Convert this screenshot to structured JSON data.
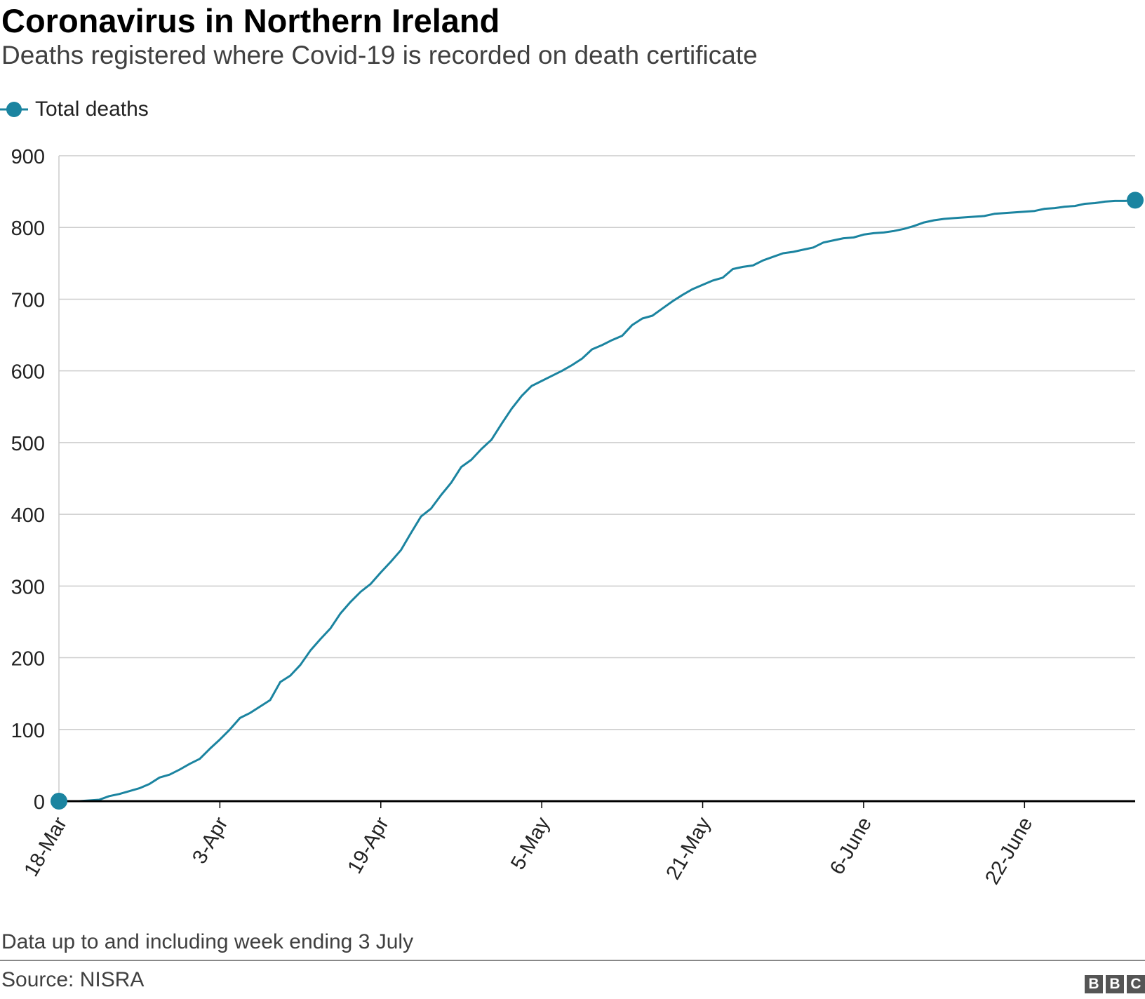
{
  "header": {
    "title": "Coronavirus in Northern Ireland",
    "subtitle": "Deaths registered where Covid-19 is recorded on death certificate"
  },
  "footer": {
    "note": "Data up to and including week ending 3 July",
    "source": "Source: NISRA",
    "logo": [
      "B",
      "B",
      "C"
    ]
  },
  "colors": {
    "series": "#1b84a0",
    "grid": "#cccccc",
    "baseline": "#000000"
  },
  "chart_data": {
    "type": "line",
    "title": "Coronavirus in Northern Ireland",
    "subtitle": "Deaths registered where Covid-19 is recorded on death certificate",
    "xlabel": "",
    "ylabel": "",
    "ylim": [
      0,
      900
    ],
    "yticks": [
      0,
      100,
      200,
      300,
      400,
      500,
      600,
      700,
      800,
      900
    ],
    "x_range": [
      "2020-03-18",
      "2020-07-03"
    ],
    "xticks": [
      {
        "date": "2020-03-18",
        "label": "18-Mar"
      },
      {
        "date": "2020-04-03",
        "label": "3-Apr"
      },
      {
        "date": "2020-04-19",
        "label": "19-Apr"
      },
      {
        "date": "2020-05-05",
        "label": "5-May"
      },
      {
        "date": "2020-05-21",
        "label": "21-May"
      },
      {
        "date": "2020-06-06",
        "label": "6-June"
      },
      {
        "date": "2020-06-22",
        "label": "22-June"
      }
    ],
    "grid": true,
    "legend": "top-left",
    "series": [
      {
        "name": "Total deaths",
        "markers": "first-and-last",
        "points": [
          [
            "2020-03-18",
            0
          ],
          [
            "2020-03-19",
            0
          ],
          [
            "2020-03-20",
            0
          ],
          [
            "2020-03-21",
            1
          ],
          [
            "2020-03-22",
            2
          ],
          [
            "2020-03-23",
            7
          ],
          [
            "2020-03-24",
            10
          ],
          [
            "2020-03-25",
            14
          ],
          [
            "2020-03-26",
            18
          ],
          [
            "2020-03-27",
            24
          ],
          [
            "2020-03-28",
            33
          ],
          [
            "2020-03-29",
            37
          ],
          [
            "2020-03-30",
            44
          ],
          [
            "2020-03-31",
            52
          ],
          [
            "2020-04-01",
            59
          ],
          [
            "2020-04-02",
            73
          ],
          [
            "2020-04-03",
            86
          ],
          [
            "2020-04-04",
            100
          ],
          [
            "2020-04-05",
            116
          ],
          [
            "2020-04-06",
            123
          ],
          [
            "2020-04-07",
            132
          ],
          [
            "2020-04-08",
            141
          ],
          [
            "2020-04-09",
            166
          ],
          [
            "2020-04-10",
            175
          ],
          [
            "2020-04-11",
            190
          ],
          [
            "2020-04-12",
            210
          ],
          [
            "2020-04-13",
            226
          ],
          [
            "2020-04-14",
            241
          ],
          [
            "2020-04-15",
            262
          ],
          [
            "2020-04-16",
            278
          ],
          [
            "2020-04-17",
            292
          ],
          [
            "2020-04-18",
            303
          ],
          [
            "2020-04-19",
            319
          ],
          [
            "2020-04-20",
            334
          ],
          [
            "2020-04-21",
            350
          ],
          [
            "2020-04-22",
            374
          ],
          [
            "2020-04-23",
            397
          ],
          [
            "2020-04-24",
            408
          ],
          [
            "2020-04-25",
            427
          ],
          [
            "2020-04-26",
            444
          ],
          [
            "2020-04-27",
            466
          ],
          [
            "2020-04-28",
            476
          ],
          [
            "2020-04-29",
            491
          ],
          [
            "2020-04-30",
            504
          ],
          [
            "2020-05-01",
            526
          ],
          [
            "2020-05-02",
            547
          ],
          [
            "2020-05-03",
            565
          ],
          [
            "2020-05-04",
            579
          ],
          [
            "2020-05-05",
            586
          ],
          [
            "2020-05-06",
            593
          ],
          [
            "2020-05-07",
            600
          ],
          [
            "2020-05-08",
            608
          ],
          [
            "2020-05-09",
            617
          ],
          [
            "2020-05-10",
            630
          ],
          [
            "2020-05-11",
            636
          ],
          [
            "2020-05-12",
            643
          ],
          [
            "2020-05-13",
            649
          ],
          [
            "2020-05-14",
            664
          ],
          [
            "2020-05-15",
            673
          ],
          [
            "2020-05-16",
            677
          ],
          [
            "2020-05-17",
            687
          ],
          [
            "2020-05-18",
            697
          ],
          [
            "2020-05-19",
            706
          ],
          [
            "2020-05-20",
            714
          ],
          [
            "2020-05-21",
            720
          ],
          [
            "2020-05-22",
            726
          ],
          [
            "2020-05-23",
            730
          ],
          [
            "2020-05-24",
            742
          ],
          [
            "2020-05-25",
            745
          ],
          [
            "2020-05-26",
            747
          ],
          [
            "2020-05-27",
            754
          ],
          [
            "2020-05-28",
            759
          ],
          [
            "2020-05-29",
            764
          ],
          [
            "2020-05-30",
            766
          ],
          [
            "2020-05-31",
            769
          ],
          [
            "2020-06-01",
            772
          ],
          [
            "2020-06-02",
            779
          ],
          [
            "2020-06-03",
            782
          ],
          [
            "2020-06-04",
            785
          ],
          [
            "2020-06-05",
            786
          ],
          [
            "2020-06-06",
            790
          ],
          [
            "2020-06-07",
            792
          ],
          [
            "2020-06-08",
            793
          ],
          [
            "2020-06-09",
            795
          ],
          [
            "2020-06-10",
            798
          ],
          [
            "2020-06-11",
            802
          ],
          [
            "2020-06-12",
            807
          ],
          [
            "2020-06-13",
            810
          ],
          [
            "2020-06-14",
            812
          ],
          [
            "2020-06-15",
            813
          ],
          [
            "2020-06-16",
            814
          ],
          [
            "2020-06-17",
            815
          ],
          [
            "2020-06-18",
            816
          ],
          [
            "2020-06-19",
            819
          ],
          [
            "2020-06-20",
            820
          ],
          [
            "2020-06-21",
            821
          ],
          [
            "2020-06-22",
            822
          ],
          [
            "2020-06-23",
            823
          ],
          [
            "2020-06-24",
            826
          ],
          [
            "2020-06-25",
            827
          ],
          [
            "2020-06-26",
            829
          ],
          [
            "2020-06-27",
            830
          ],
          [
            "2020-06-28",
            833
          ],
          [
            "2020-06-29",
            834
          ],
          [
            "2020-06-30",
            836
          ],
          [
            "2020-07-01",
            837
          ],
          [
            "2020-07-02",
            837
          ],
          [
            "2020-07-03",
            838
          ]
        ]
      }
    ]
  }
}
